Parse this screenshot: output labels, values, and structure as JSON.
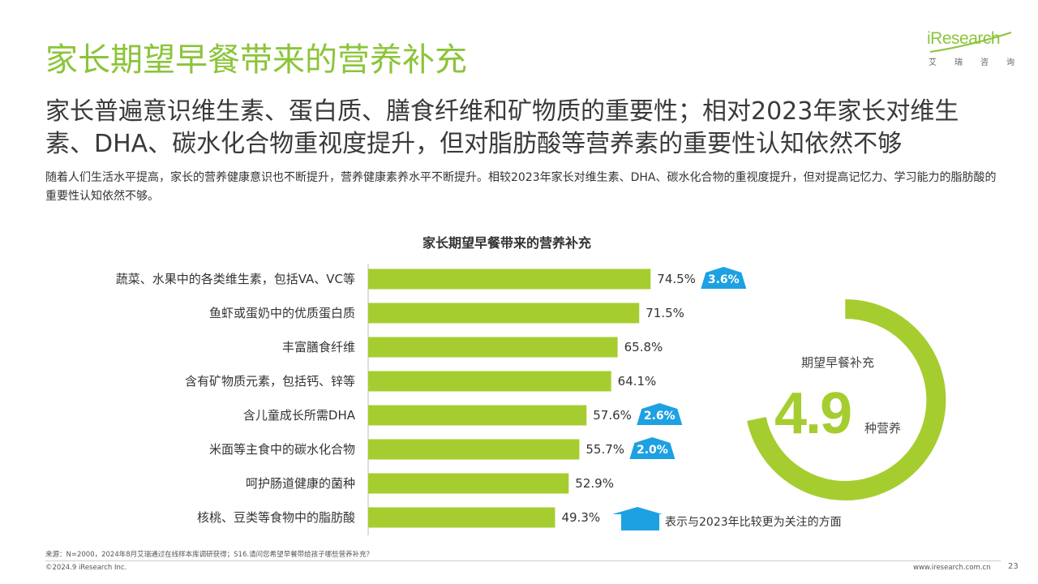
{
  "page": {
    "title": "家长期望早餐带来的营养补充",
    "headline": "家长普遍意识维生素、蛋白质、膳食纤维和矿物质的重要性；相对2023年家长对维生素、DHA、碳水化合物重视度提升，但对脂肪酸等营养素的重要性认知依然不够",
    "description": "随着人们生活水平提高，家长的营养健康意识也不断提升，营养健康素养水平不断提升。相较2023年家长对维生素、DHA、碳水化合物的重视度提升，但对提高记忆力、学习能力的脂肪酸的重要性认知依然不够。",
    "source": "来源：N=2000，2024年8月艾瑞通过在线样本库调研获得；S16.请问您希望早餐带给孩子哪些营养补充？",
    "copyright": "©2024.9 iResearch Inc.",
    "website": "www.iresearch.com.cn",
    "page_number": "23"
  },
  "logo": {
    "word": "iResearch",
    "subtitle_chars": [
      "艾",
      "瑞",
      "咨",
      "询"
    ]
  },
  "colors": {
    "title_green": "#8cc43a",
    "bar_green": "#a6cd2f",
    "badge_blue": "#1da1e2"
  },
  "donut": {
    "label": "期望早餐补充",
    "value": "4.9",
    "unit": "种营养"
  },
  "legend": {
    "text": "表示与2023年比较更为关注的方面",
    "icon": "up-arrow-icon"
  },
  "chart_data": {
    "type": "bar",
    "orientation": "horizontal",
    "title": "家长期望早餐带来的营养补充",
    "categories": [
      "蔬菜、水果中的各类维生素，包括VA、VC等",
      "鱼虾或蛋奶中的优质蛋白质",
      "丰富膳食纤维",
      "含有矿物质元素，包括钙、锌等",
      "含儿童成长所需DHA",
      "米面等主食中的碳水化合物",
      "呵护肠道健康的菌种",
      "核桃、豆类等食物中的脂肪酸"
    ],
    "values": [
      74.5,
      71.5,
      65.8,
      64.1,
      57.6,
      55.7,
      52.9,
      49.3
    ],
    "labels": [
      "74.5%",
      "71.5%",
      "65.8%",
      "64.1%",
      "57.6%",
      "55.7%",
      "52.9%",
      "49.3%"
    ],
    "increase": [
      "3.6%",
      null,
      null,
      null,
      "2.6%",
      "2.0%",
      null,
      null
    ],
    "xlim": [
      0,
      100
    ],
    "grid": false
  }
}
